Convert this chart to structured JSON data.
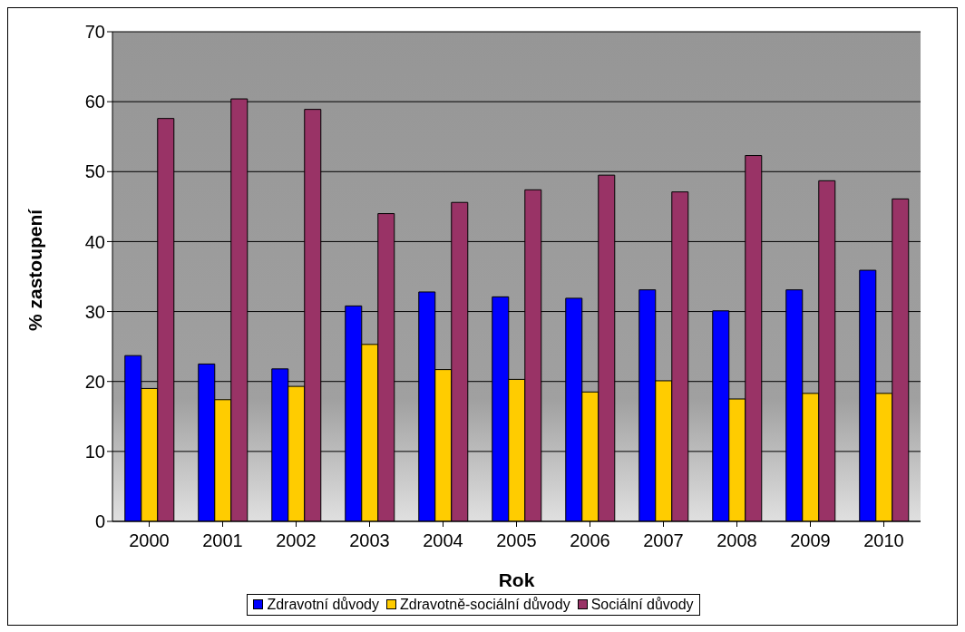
{
  "chart_data": {
    "type": "bar",
    "xlabel": "Rok",
    "ylabel": "% zastoupení",
    "categories": [
      "2000",
      "2001",
      "2002",
      "2003",
      "2004",
      "2005",
      "2006",
      "2007",
      "2008",
      "2009",
      "2010"
    ],
    "series": [
      {
        "name": "Zdravotní důvody",
        "color": "#0000ff",
        "values": [
          23.7,
          22.5,
          21.8,
          30.8,
          32.8,
          32.1,
          31.9,
          33.1,
          30.1,
          33.1,
          35.9
        ]
      },
      {
        "name": "Zdravotně-sociální důvody",
        "color": "#ffcc00",
        "values": [
          19.0,
          17.4,
          19.3,
          25.3,
          21.7,
          20.3,
          18.5,
          20.1,
          17.5,
          18.3,
          18.3
        ]
      },
      {
        "name": "Sociální důvody",
        "color": "#993366",
        "values": [
          57.6,
          60.4,
          58.9,
          44.0,
          45.6,
          47.4,
          49.5,
          47.1,
          52.3,
          48.7,
          46.1
        ]
      }
    ],
    "ylim": [
      0,
      70
    ],
    "yticks": [
      0,
      10,
      20,
      30,
      40,
      50,
      60,
      70
    ],
    "grid": "y",
    "legend": "bottom"
  }
}
